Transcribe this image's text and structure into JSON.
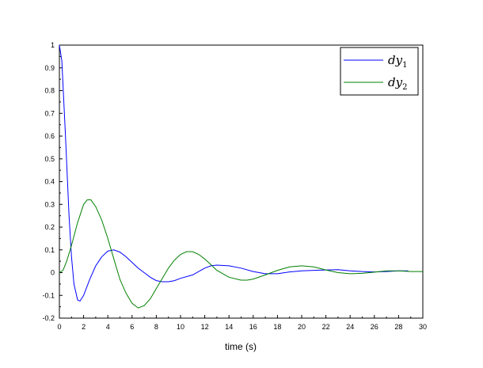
{
  "chart_data": {
    "type": "line",
    "title": "",
    "xlabel": "time (s)",
    "ylabel": "",
    "xlim": [
      0,
      30
    ],
    "ylim": [
      -0.2,
      1
    ],
    "xticks": [
      "0",
      "2",
      "4",
      "6",
      "8",
      "10",
      "12",
      "14",
      "16",
      "18",
      "20",
      "22",
      "24",
      "26",
      "28",
      "30"
    ],
    "yticks": [
      "-0.2",
      "-0.1",
      "0",
      "0.1",
      "0.2",
      "0.3",
      "0.4",
      "0.5",
      "0.6",
      "0.7",
      "0.8",
      "0.9",
      "1"
    ],
    "grid": false,
    "legend_position": "top-right",
    "series": [
      {
        "name": "dy",
        "subscript": "1",
        "color": "#0000ff",
        "x": [
          0,
          0.2,
          0.5,
          0.8,
          1.0,
          1.2,
          1.5,
          1.7,
          2,
          2.5,
          3,
          3.5,
          4,
          4.5,
          5,
          5.5,
          6,
          6.5,
          7,
          7.5,
          8,
          8.5,
          9,
          9.5,
          10,
          11,
          12,
          12.5,
          13,
          14,
          15,
          16,
          17,
          18,
          19,
          20,
          21,
          22,
          23,
          24,
          25,
          26,
          27,
          28,
          28.8
        ],
        "y": [
          1,
          0.93,
          0.6,
          0.25,
          0.07,
          -0.05,
          -0.12,
          -0.125,
          -0.1,
          -0.03,
          0.03,
          0.07,
          0.095,
          0.1,
          0.09,
          0.07,
          0.045,
          0.02,
          0,
          -0.02,
          -0.035,
          -0.04,
          -0.04,
          -0.035,
          -0.025,
          -0.01,
          0.02,
          0.03,
          0.033,
          0.03,
          0.02,
          0.005,
          -0.005,
          -0.005,
          0.003,
          0.008,
          0.01,
          0.012,
          0.013,
          0.008,
          0.005,
          0.003,
          0.005,
          0.008,
          0.008
        ]
      },
      {
        "name": "dy",
        "subscript": "2",
        "color": "#008000",
        "x": [
          0,
          0.3,
          0.6,
          1,
          1.5,
          2,
          2.3,
          2.6,
          3,
          3.5,
          4,
          4.5,
          5,
          5.5,
          6,
          6.5,
          7,
          7.5,
          8,
          8.5,
          9,
          9.5,
          10,
          10.5,
          11,
          11.5,
          12,
          12.5,
          13,
          14,
          15,
          15.5,
          16,
          17,
          18,
          19,
          20,
          21,
          22,
          23,
          24,
          25,
          26,
          27,
          28,
          29,
          30
        ],
        "y": [
          0,
          0.01,
          0.05,
          0.12,
          0.22,
          0.3,
          0.32,
          0.32,
          0.29,
          0.23,
          0.15,
          0.06,
          -0.03,
          -0.09,
          -0.135,
          -0.155,
          -0.145,
          -0.115,
          -0.07,
          -0.025,
          0.02,
          0.055,
          0.08,
          0.092,
          0.092,
          0.08,
          0.06,
          0.035,
          0.01,
          -0.02,
          -0.033,
          -0.033,
          -0.028,
          -0.01,
          0.01,
          0.025,
          0.03,
          0.025,
          0.012,
          0,
          -0.005,
          -0.003,
          0.002,
          0.008,
          0.008,
          0.005,
          0.005
        ]
      }
    ]
  }
}
